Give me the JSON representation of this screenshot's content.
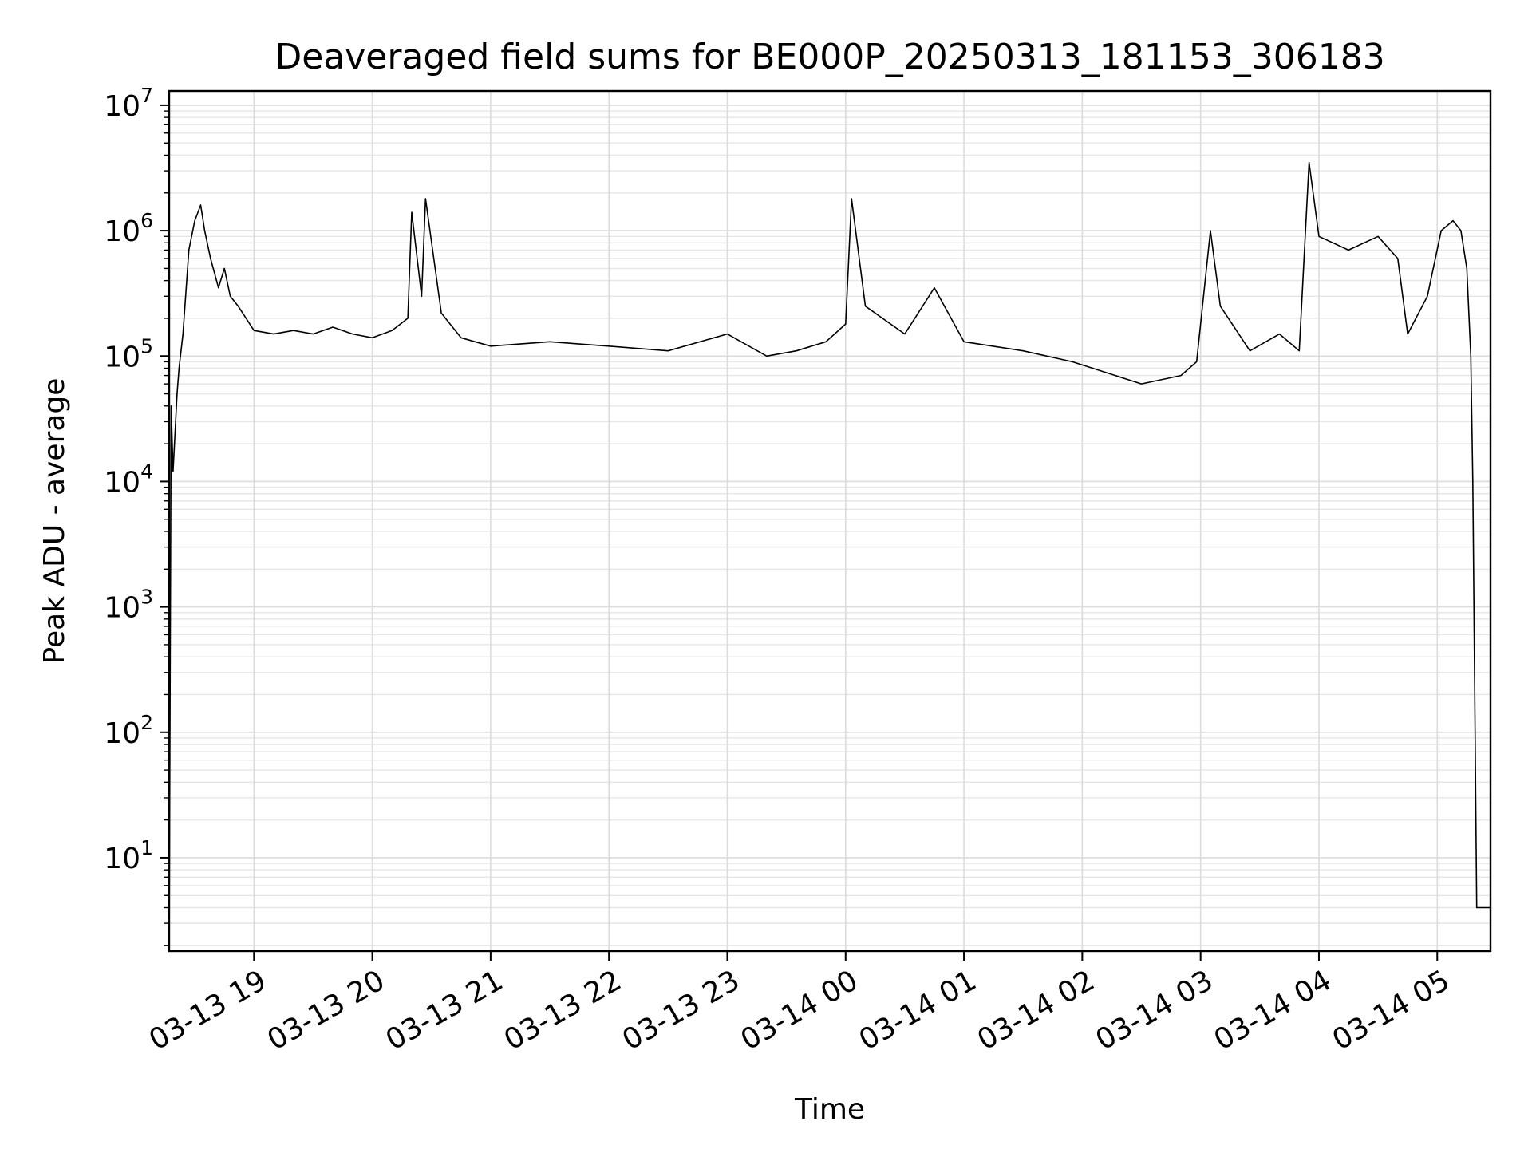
{
  "chart_data": {
    "type": "line",
    "title": "Deaveraged field sums for BE000P_20250313_181153_306183",
    "xlabel": "Time",
    "ylabel": "Peak ADU - average",
    "yscale": "log",
    "ylim": [
      1.8,
      13000000
    ],
    "xlim": [
      "2025-03-13 18:17",
      "2025-03-14 05:27"
    ],
    "grid": true,
    "series_color": "#000000",
    "x_ticks": [
      {
        "value": "2025-03-13 19:00",
        "label": "03-13 19"
      },
      {
        "value": "2025-03-13 20:00",
        "label": "03-13 20"
      },
      {
        "value": "2025-03-13 21:00",
        "label": "03-13 21"
      },
      {
        "value": "2025-03-13 22:00",
        "label": "03-13 22"
      },
      {
        "value": "2025-03-13 23:00",
        "label": "03-13 23"
      },
      {
        "value": "2025-03-14 00:00",
        "label": "03-14 00"
      },
      {
        "value": "2025-03-14 01:00",
        "label": "03-14 01"
      },
      {
        "value": "2025-03-14 02:00",
        "label": "03-14 02"
      },
      {
        "value": "2025-03-14 03:00",
        "label": "03-14 03"
      },
      {
        "value": "2025-03-14 04:00",
        "label": "03-14 04"
      },
      {
        "value": "2025-03-14 05:00",
        "label": "03-14 05"
      }
    ],
    "y_ticks": [
      {
        "value": 10,
        "base": "10",
        "exp": "1"
      },
      {
        "value": 100,
        "base": "10",
        "exp": "2"
      },
      {
        "value": 1000,
        "base": "10",
        "exp": "3"
      },
      {
        "value": 10000,
        "base": "10",
        "exp": "4"
      },
      {
        "value": 100000,
        "base": "10",
        "exp": "5"
      },
      {
        "value": 1000000,
        "base": "10",
        "exp": "6"
      },
      {
        "value": 10000000,
        "base": "10",
        "exp": "7"
      }
    ],
    "series": [
      {
        "x": [
          "2025-03-13 18:17",
          "2025-03-13 18:18",
          "2025-03-13 18:19",
          "2025-03-13 18:21",
          "2025-03-13 18:22",
          "2025-03-13 18:24",
          "2025-03-13 18:27",
          "2025-03-13 18:30",
          "2025-03-13 18:33",
          "2025-03-13 18:35",
          "2025-03-13 18:38",
          "2025-03-13 18:42",
          "2025-03-13 18:45",
          "2025-03-13 18:48",
          "2025-03-13 18:52",
          "2025-03-13 18:56",
          "2025-03-13 19:00",
          "2025-03-13 19:10",
          "2025-03-13 19:20",
          "2025-03-13 19:30",
          "2025-03-13 19:40",
          "2025-03-13 19:50",
          "2025-03-13 20:00",
          "2025-03-13 20:10",
          "2025-03-13 20:18",
          "2025-03-13 20:20",
          "2025-03-13 20:25",
          "2025-03-13 20:27",
          "2025-03-13 20:35",
          "2025-03-13 20:45",
          "2025-03-13 21:00",
          "2025-03-13 21:30",
          "2025-03-13 22:00",
          "2025-03-13 22:30",
          "2025-03-13 23:00",
          "2025-03-13 23:20",
          "2025-03-13 23:35",
          "2025-03-13 23:50",
          "2025-03-14 00:00",
          "2025-03-14 00:03",
          "2025-03-14 00:10",
          "2025-03-14 00:30",
          "2025-03-14 00:45",
          "2025-03-14 01:00",
          "2025-03-14 01:30",
          "2025-03-14 01:55",
          "2025-03-14 02:30",
          "2025-03-14 02:50",
          "2025-03-14 02:58",
          "2025-03-14 03:05",
          "2025-03-14 03:10",
          "2025-03-14 03:25",
          "2025-03-14 03:40",
          "2025-03-14 03:50",
          "2025-03-14 03:55",
          "2025-03-14 04:00",
          "2025-03-14 04:15",
          "2025-03-14 04:30",
          "2025-03-14 04:40",
          "2025-03-14 04:45",
          "2025-03-14 04:55",
          "2025-03-14 05:02",
          "2025-03-14 05:08",
          "2025-03-14 05:12",
          "2025-03-14 05:15",
          "2025-03-14 05:17",
          "2025-03-14 05:18",
          "2025-03-14 05:20",
          "2025-03-14 05:27"
        ],
        "y": [
          1.8,
          40000,
          12000,
          50000,
          80000,
          150000,
          700000,
          1200000,
          1600000,
          1000000,
          600000,
          350000,
          500000,
          300000,
          250000,
          200000,
          160000,
          150000,
          160000,
          150000,
          170000,
          150000,
          140000,
          160000,
          200000,
          1400000,
          300000,
          1800000,
          220000,
          140000,
          120000,
          130000,
          120000,
          110000,
          150000,
          100000,
          110000,
          130000,
          180000,
          1800000,
          250000,
          150000,
          350000,
          130000,
          110000,
          90000,
          60000,
          70000,
          90000,
          1000000,
          250000,
          110000,
          150000,
          110000,
          3500000,
          900000,
          700000,
          900000,
          600000,
          150000,
          300000,
          1000000,
          1200000,
          1000000,
          500000,
          100000,
          10000,
          4,
          4
        ]
      }
    ]
  }
}
